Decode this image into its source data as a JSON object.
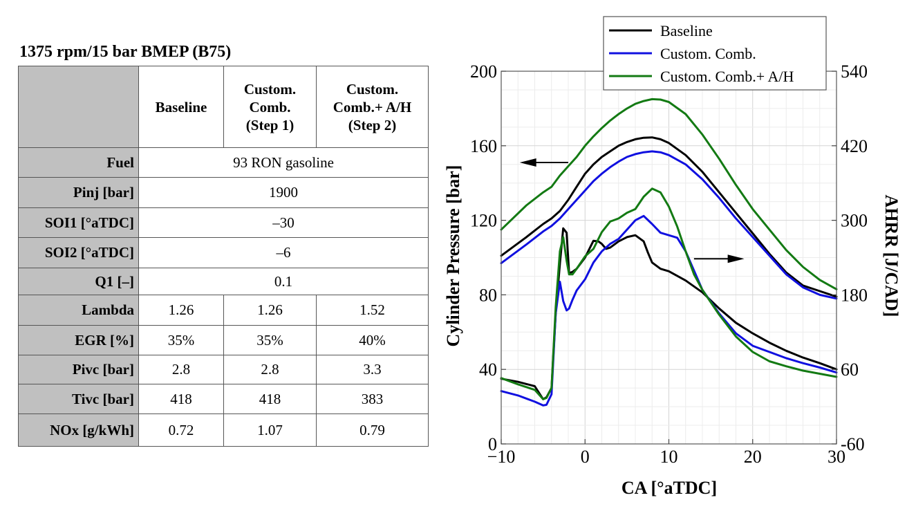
{
  "table": {
    "title": "1375 rpm/15 bar BMEP (B75)",
    "headers": [
      "Baseline",
      "Custom.\nComb.\n(Step 1)",
      "Custom.\nComb.+ A/H\n(Step 2)"
    ],
    "rows": [
      {
        "label": "Fuel",
        "cells": [
          "93 RON gasoline"
        ]
      },
      {
        "label": "Pinj [bar]",
        "cells": [
          "1900"
        ]
      },
      {
        "label": "SOI1 [°aTDC]",
        "cells": [
          "–30"
        ]
      },
      {
        "label": "SOI2 [°aTDC]",
        "cells": [
          "–6"
        ]
      },
      {
        "label": "Q1 [–]",
        "cells": [
          "0.1"
        ]
      },
      {
        "label": "Lambda",
        "cells": [
          "1.26",
          "1.26",
          "1.52"
        ]
      },
      {
        "label": "EGR [%]",
        "cells": [
          "35%",
          "35%",
          "40%"
        ]
      },
      {
        "label": "Pivc [bar]",
        "cells": [
          "2.8",
          "2.8",
          "3.3"
        ]
      },
      {
        "label": "Tivc [bar]",
        "cells": [
          "418",
          "418",
          "383"
        ]
      },
      {
        "label": "NOx [g/kWh]",
        "cells": [
          "0.72",
          "1.07",
          "0.79"
        ]
      }
    ]
  },
  "chart_data": {
    "type": "line",
    "xlabel": "CA [°aTDC]",
    "ylabel": "Cylinder Pressure [bar]",
    "y2label": "AHRR [J/CAD]",
    "xlim": [
      -10,
      30
    ],
    "ylim": [
      0,
      200
    ],
    "y2lim": [
      -60,
      540
    ],
    "xticks": [
      -10,
      0,
      10,
      20,
      30
    ],
    "xtick_labels": [
      "−10",
      "0",
      "10",
      "20",
      "30"
    ],
    "yticks": [
      0,
      40,
      80,
      120,
      160,
      200
    ],
    "y2ticks": [
      -60,
      60,
      180,
      300,
      420,
      540
    ],
    "grid": true,
    "legend_position": "top",
    "annotations": [
      {
        "type": "arrow",
        "direction": "left",
        "axis": "pressure",
        "from": [
          -2,
          151
        ],
        "to": [
          -7.8,
          151
        ]
      },
      {
        "type": "arrow",
        "direction": "right",
        "axis": "ahrr",
        "from": [
          13,
          238
        ],
        "to": [
          19,
          238
        ]
      }
    ],
    "series": [
      {
        "name": "Baseline",
        "color": "#000000",
        "axis": "pressure",
        "x": [
          -10,
          -7,
          -5,
          -4,
          -3,
          -2,
          -1,
          0,
          1,
          2,
          3,
          4,
          5,
          6,
          7,
          8,
          9,
          10,
          12,
          14,
          16,
          18,
          20,
          22,
          24,
          26,
          28,
          30
        ],
        "y": [
          101,
          111,
          118,
          121,
          125,
          131,
          138,
          145,
          150,
          154,
          157,
          160,
          162,
          163.5,
          164.3,
          164.5,
          163.5,
          161.5,
          155,
          146,
          135,
          124,
          113,
          102,
          92,
          85,
          82,
          79
        ]
      },
      {
        "name": "Custom. Comb.",
        "color": "#1010e0",
        "axis": "pressure",
        "x": [
          -10,
          -7,
          -5,
          -4,
          -3,
          -2,
          -1,
          0,
          1,
          2,
          3,
          4,
          5,
          6,
          7,
          8,
          9,
          10,
          12,
          14,
          16,
          18,
          20,
          22,
          24,
          26,
          28,
          30
        ],
        "y": [
          97,
          107,
          114,
          117,
          121,
          126,
          131,
          136,
          141,
          145,
          148.5,
          151.5,
          154,
          155.5,
          156.5,
          157,
          156.5,
          155,
          150,
          142,
          132,
          121,
          111,
          101,
          91,
          84,
          80,
          78
        ]
      },
      {
        "name": "Custom. Comb.+ A/H",
        "color": "#137a13",
        "axis": "pressure",
        "x": [
          -10,
          -7,
          -5,
          -4,
          -3,
          -2,
          -1,
          0,
          1,
          2,
          3,
          4,
          5,
          6,
          7,
          8,
          9,
          10,
          12,
          14,
          16,
          18,
          20,
          22,
          24,
          26,
          28,
          30
        ],
        "y": [
          115,
          128,
          135,
          138,
          144,
          149,
          154,
          160,
          165,
          169.5,
          173.5,
          177,
          180,
          182.5,
          184,
          185,
          184.8,
          183.5,
          177,
          166,
          153,
          139,
          126,
          115,
          104,
          95,
          88,
          83
        ]
      },
      {
        "name": "Baseline AHRR",
        "color": "#000000",
        "axis": "ahrr",
        "x": [
          -10,
          -8,
          -6,
          -5,
          -4.6,
          -4,
          -3.5,
          -3,
          -2.6,
          -2.2,
          -1.9,
          -1.5,
          -1,
          0,
          1,
          1.6,
          2,
          2.5,
          3,
          4,
          5,
          6,
          7,
          7.5,
          8,
          9,
          10,
          12,
          14,
          16,
          18,
          20,
          22,
          24,
          26,
          28,
          30
        ],
        "y": [
          45,
          40,
          33,
          12,
          15,
          30,
          150,
          230,
          287,
          280,
          215,
          217,
          222,
          240,
          267,
          266,
          262,
          254,
          256,
          266,
          273,
          276,
          266,
          248,
          232,
          222,
          218,
          203,
          184,
          158,
          135,
          118,
          103,
          90,
          79,
          70,
          60
        ]
      },
      {
        "name": "Custom. Comb. AHRR",
        "color": "#1010e0",
        "axis": "ahrr",
        "x": [
          -10,
          -8,
          -6,
          -5,
          -4.6,
          -4,
          -3.5,
          -3,
          -2.6,
          -2.2,
          -1.9,
          -1.5,
          -1,
          0,
          1,
          2,
          3,
          4,
          5,
          6,
          7,
          8,
          9,
          10,
          11,
          12,
          14,
          16,
          18,
          20,
          22,
          24,
          26,
          28,
          30
        ],
        "y": [
          25,
          18,
          8,
          2,
          3,
          20,
          150,
          201,
          170,
          155,
          158,
          172,
          187,
          205,
          232,
          250,
          262,
          270,
          285,
          300,
          307,
          294,
          280,
          276,
          272,
          250,
          188,
          150,
          118,
          98,
          88,
          78,
          70,
          63,
          55
        ]
      },
      {
        "name": "Custom. Comb.+ A/H AHRR",
        "color": "#137a13",
        "axis": "ahrr",
        "x": [
          -10,
          -8,
          -6,
          -5,
          -4.6,
          -4,
          -3.5,
          -3,
          -2.6,
          -2.2,
          -1.9,
          -1.5,
          -1,
          0,
          1,
          2,
          3,
          4,
          5,
          6,
          7,
          8,
          9,
          10,
          11,
          12,
          13,
          14,
          16,
          18,
          20,
          22,
          24,
          26,
          28,
          30
        ],
        "y": [
          46,
          36,
          27,
          12,
          14,
          30,
          160,
          250,
          273,
          235,
          213,
          213,
          222,
          242,
          254,
          281,
          298,
          303,
          312,
          318,
          338,
          351,
          345,
          322,
          290,
          250,
          213,
          188,
          148,
          113,
          88,
          73,
          65,
          58,
          53,
          48
        ]
      }
    ]
  }
}
